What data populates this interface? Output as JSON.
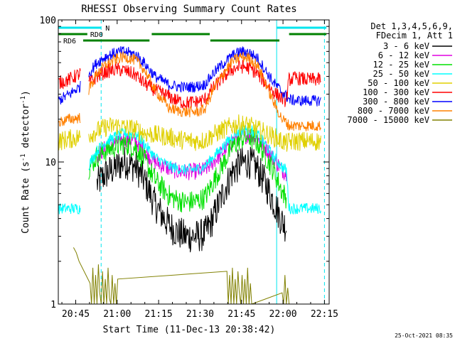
{
  "chart_data": {
    "type": "line",
    "title": "RHESSI Observing Summary Count Rates",
    "xlabel": "Start Time (11-Dec-13 20:38:42)",
    "ylabel": "Count Rate (s",
    "ylabel_sup": "-1",
    "ylabel_tail": " detector",
    "ylabel_tail_sup": "-1",
    "ylabel_close": ")",
    "y_scale": "log",
    "ylim": [
      1,
      100
    ],
    "x_start_label": "20:38:42",
    "xlim_minutes": [
      0,
      98
    ],
    "x_ticks": [
      {
        "label": "20:45",
        "minute": 6.3
      },
      {
        "label": "21:00",
        "minute": 21.3
      },
      {
        "label": "21:15",
        "minute": 36.3
      },
      {
        "label": "21:30",
        "minute": 51.3
      },
      {
        "label": "21:45",
        "minute": 66.3
      },
      {
        "label": "22:00",
        "minute": 81.3
      },
      {
        "label": "22:15",
        "minute": 96.3
      }
    ],
    "y_ticks": [
      {
        "label": "1",
        "value": 1
      },
      {
        "label": "10",
        "value": 10
      },
      {
        "label": "100",
        "value": 100
      }
    ],
    "legend_header": [
      "Det 1,3,4,5,6,9,",
      "FDecim 1, Att 1"
    ],
    "legend_position": "right",
    "timestamp": "25-Oct-2021 08:35",
    "bars": [
      {
        "label": "N",
        "color": "#00e5ee",
        "segments": [
          [
            0,
            15.5
          ],
          [
            79,
            97
          ]
        ]
      },
      {
        "label": "RD0",
        "color": "#008000",
        "segments": [
          [
            0,
            10.5
          ],
          [
            33.8,
            54.8
          ],
          [
            83.5,
            97
          ]
        ]
      },
      {
        "label": "RD6",
        "color": "#008000",
        "segments": [
          [
            9,
            33
          ],
          [
            55,
            80
          ]
        ]
      }
    ],
    "vlines": {
      "solid": [
        {
          "minute": 0,
          "color": "#00e5ee"
        },
        {
          "minute": 79,
          "color": "#00e5ee"
        }
      ],
      "dashed": [
        {
          "minute": 15.5,
          "color": "#00e5ee"
        },
        {
          "minute": 96.3,
          "color": "#00e5ee"
        }
      ]
    },
    "series": [
      {
        "name": "3 - 6 keV",
        "color": "#000000",
        "x": [
          0,
          9,
          11,
          14,
          17,
          21,
          24,
          28,
          31,
          35,
          40,
          43,
          46,
          50,
          53,
          56,
          60,
          63,
          66,
          69,
          72,
          75,
          78,
          81,
          82.5,
          83.5,
          86,
          90,
          95
        ],
        "y": [
          null,
          null,
          null,
          7.0,
          8.2,
          9.2,
          10.0,
          9.3,
          7.5,
          5.0,
          3.6,
          3.2,
          3.0,
          3.0,
          3.1,
          4.0,
          6.3,
          8.5,
          9.8,
          10.0,
          9.0,
          7.0,
          5.2,
          3.8,
          3.5,
          null,
          null,
          null,
          null
        ],
        "noise": 0.12
      },
      {
        "name": "6 - 12 keV",
        "color": "#e000e0",
        "x": [
          0,
          9,
          11,
          14,
          17,
          21,
          24,
          28,
          31,
          35,
          40,
          43,
          46,
          50,
          53,
          56,
          60,
          63,
          66,
          69,
          72,
          75,
          78,
          81,
          82.5,
          83.5,
          86,
          90,
          95
        ],
        "y": [
          null,
          null,
          null,
          11.0,
          12.5,
          13.8,
          14.6,
          14.0,
          12.0,
          10.0,
          9.0,
          8.6,
          8.5,
          8.6,
          8.8,
          10.0,
          12.0,
          14.0,
          15.2,
          15.5,
          14.6,
          12.6,
          10.4,
          8.8,
          8.4,
          null,
          null,
          null,
          null
        ],
        "noise": 0.06
      },
      {
        "name": "12 - 25 keV",
        "color": "#00e000",
        "x": [
          0,
          9,
          11,
          14,
          17,
          21,
          24,
          28,
          31,
          35,
          40,
          43,
          46,
          50,
          53,
          56,
          60,
          63,
          66,
          69,
          72,
          75,
          78,
          81,
          82.5,
          83.5,
          86,
          90,
          95
        ],
        "y": [
          null,
          null,
          9.0,
          11.0,
          12.0,
          13.0,
          13.5,
          12.6,
          10.5,
          7.5,
          5.8,
          5.4,
          5.2,
          5.3,
          5.6,
          7.2,
          10.0,
          12.8,
          14.5,
          15.0,
          13.8,
          11.0,
          8.6,
          6.2,
          5.6,
          null,
          null,
          null,
          null
        ],
        "noise": 0.08
      },
      {
        "name": "25 - 50 keV",
        "color": "#00ffff",
        "x": [
          0,
          4,
          8,
          9,
          11,
          14,
          17,
          21,
          24,
          28,
          31,
          35,
          40,
          43,
          46,
          50,
          53,
          56,
          60,
          63,
          66,
          69,
          72,
          75,
          78,
          81,
          82.5,
          83.5,
          86,
          90,
          95
        ],
        "y": [
          4.7,
          4.7,
          4.7,
          null,
          9.5,
          12.0,
          13.8,
          15.2,
          16.0,
          15.6,
          13.5,
          10.8,
          9.4,
          9.0,
          8.8,
          8.9,
          9.3,
          10.8,
          13.0,
          15.2,
          16.8,
          17.0,
          15.8,
          13.2,
          10.8,
          9.2,
          8.8,
          4.7,
          4.7,
          4.7,
          4.7
        ],
        "noise": 0.04
      },
      {
        "name": "50 - 100 keV",
        "color": "#e0d000",
        "x": [
          0,
          4,
          8,
          9,
          11,
          14,
          17,
          21,
          24,
          28,
          31,
          35,
          40,
          43,
          46,
          50,
          53,
          56,
          60,
          63,
          66,
          69,
          72,
          75,
          78,
          81,
          82.5,
          83.5,
          86,
          90,
          95
        ],
        "y": [
          14.0,
          14.5,
          15.0,
          null,
          15.5,
          16.5,
          17.5,
          18.0,
          17.5,
          17.0,
          16.0,
          15.5,
          15.0,
          14.5,
          14.2,
          14.0,
          14.2,
          15.5,
          17.0,
          18.0,
          18.5,
          18.0,
          17.0,
          16.0,
          15.0,
          14.0,
          13.5,
          13.8,
          14.0,
          14.0,
          14.0
        ],
        "noise": 0.07
      },
      {
        "name": "100 - 300 keV",
        "color": "#ff0000",
        "x": [
          0,
          4,
          8,
          9,
          11,
          14,
          17,
          21,
          24,
          28,
          31,
          35,
          40,
          43,
          46,
          50,
          53,
          56,
          60,
          63,
          66,
          69,
          72,
          75,
          78,
          81,
          82.5,
          83.5,
          86,
          90,
          95
        ],
        "y": [
          36.0,
          38.0,
          42.0,
          null,
          36.0,
          40.0,
          43.0,
          45.0,
          44.0,
          41.0,
          36.0,
          32.0,
          29.0,
          27.0,
          26.0,
          26.5,
          27.5,
          33.0,
          40.0,
          45.0,
          47.0,
          46.0,
          42.0,
          36.0,
          31.0,
          28.0,
          27.0,
          38.0,
          39.0,
          38.0,
          38.0
        ],
        "noise": 0.05
      },
      {
        "name": "300 - 800 keV",
        "color": "#0000ff",
        "x": [
          0,
          4,
          8,
          9,
          11,
          14,
          17,
          21,
          24,
          28,
          31,
          35,
          40,
          43,
          46,
          50,
          53,
          56,
          60,
          63,
          66,
          69,
          72,
          75,
          78,
          81,
          82.5,
          83.5,
          86,
          90,
          95
        ],
        "y": [
          27.0,
          30.0,
          34.0,
          null,
          42.0,
          50.0,
          55.0,
          59.0,
          60.0,
          57.0,
          50.0,
          40.0,
          35.0,
          34.0,
          33.5,
          34.0,
          35.0,
          42.0,
          50.0,
          56.0,
          60.0,
          59.0,
          54.0,
          44.0,
          36.0,
          31.0,
          29.0,
          27.5,
          27.0,
          27.0,
          27.0
        ],
        "noise": 0.04
      },
      {
        "name": "800 - 7000 keV",
        "color": "#ff8000",
        "x": [
          0,
          4,
          8,
          9,
          11,
          14,
          17,
          21,
          24,
          28,
          31,
          35,
          40,
          43,
          46,
          50,
          53,
          56,
          60,
          63,
          66,
          69,
          72,
          75,
          78,
          81,
          82.5,
          83.5,
          86,
          90,
          95
        ],
        "y": [
          19.0,
          20.0,
          20.5,
          null,
          32.0,
          42.0,
          48.0,
          53.0,
          55.0,
          52.0,
          45.0,
          32.0,
          24.0,
          23.0,
          22.5,
          22.5,
          23.5,
          32.0,
          43.0,
          51.0,
          55.0,
          54.0,
          48.0,
          36.0,
          26.0,
          20.0,
          19.0,
          18.0,
          18.0,
          18.0,
          18.0
        ],
        "noise": 0.04
      },
      {
        "name": "7000 - 15000 keV",
        "color": "#808000",
        "x": [
          5.5,
          6.5,
          7.5,
          11.5,
          12.0,
          12.5,
          13.0,
          13.5,
          14.0,
          14.5,
          15.0,
          15.5,
          16.0,
          16.5,
          17.0,
          17.5,
          18.0,
          18.5,
          19.0,
          19.5,
          20.0,
          20.5,
          21.0,
          21.5,
          61.0,
          61.5,
          62.0,
          62.5,
          63.0,
          63.5,
          64.0,
          64.5,
          65.0,
          65.5,
          66.0,
          66.5,
          67.0,
          67.5,
          68.0,
          68.5,
          69.0,
          69.5,
          70.0,
          81.0,
          81.5,
          82.0,
          82.5,
          83.0,
          83.5
        ],
        "y": [
          2.5,
          2.3,
          2.0,
          1.4,
          1.0,
          1.8,
          1.0,
          1.6,
          1.0,
          1.9,
          1.2,
          1.0,
          1.7,
          1.0,
          1.5,
          1.0,
          1.8,
          1.1,
          1.0,
          1.6,
          1.0,
          1.4,
          1.0,
          1.5,
          1.7,
          1.0,
          1.6,
          1.0,
          1.8,
          1.0,
          1.5,
          1.0,
          1.7,
          1.2,
          1.0,
          1.6,
          1.0,
          1.5,
          1.0,
          1.8,
          1.0,
          1.4,
          1.0,
          1.2,
          1.0,
          1.6,
          1.0,
          1.3,
          1.0
        ],
        "noise": 0
      }
    ]
  }
}
